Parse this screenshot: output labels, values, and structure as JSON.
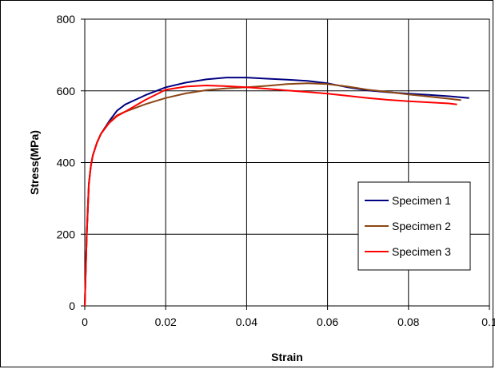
{
  "chart_data": {
    "type": "line",
    "title": "",
    "xlabel": "Strain",
    "ylabel": "Stress(MPa)",
    "xlim": [
      0,
      0.1
    ],
    "ylim": [
      0,
      800
    ],
    "x_ticks": [
      0,
      0.02,
      0.04,
      0.06,
      0.08,
      0.1
    ],
    "x_tick_labels": [
      "0",
      "0.02",
      "0.04",
      "0.06",
      "0.08",
      "0.1"
    ],
    "y_ticks": [
      0,
      200,
      400,
      600,
      800
    ],
    "y_tick_labels": [
      "0",
      "200",
      "400",
      "600",
      "800"
    ],
    "grid": true,
    "legend_position": "right-center",
    "series": [
      {
        "name": "Specimen 1",
        "color": "#000080",
        "points": [
          [
            0,
            0
          ],
          [
            0.0005,
            200
          ],
          [
            0.001,
            340
          ],
          [
            0.0015,
            390
          ],
          [
            0.002,
            420
          ],
          [
            0.003,
            455
          ],
          [
            0.004,
            480
          ],
          [
            0.006,
            515
          ],
          [
            0.008,
            545
          ],
          [
            0.01,
            562
          ],
          [
            0.015,
            588
          ],
          [
            0.02,
            610
          ],
          [
            0.025,
            623
          ],
          [
            0.03,
            632
          ],
          [
            0.035,
            637
          ],
          [
            0.04,
            637
          ],
          [
            0.045,
            634
          ],
          [
            0.05,
            631
          ],
          [
            0.055,
            628
          ],
          [
            0.06,
            621
          ],
          [
            0.065,
            610
          ],
          [
            0.07,
            601
          ],
          [
            0.075,
            596
          ],
          [
            0.08,
            592
          ],
          [
            0.085,
            589
          ],
          [
            0.09,
            585
          ],
          [
            0.095,
            580
          ]
        ]
      },
      {
        "name": "Specimen 2",
        "color": "#8B4513",
        "points": [
          [
            0,
            0
          ],
          [
            0.0005,
            200
          ],
          [
            0.001,
            340
          ],
          [
            0.0015,
            390
          ],
          [
            0.002,
            420
          ],
          [
            0.003,
            455
          ],
          [
            0.004,
            480
          ],
          [
            0.006,
            512
          ],
          [
            0.008,
            532
          ],
          [
            0.01,
            542
          ],
          [
            0.015,
            563
          ],
          [
            0.02,
            580
          ],
          [
            0.025,
            593
          ],
          [
            0.03,
            602
          ],
          [
            0.035,
            607
          ],
          [
            0.04,
            610
          ],
          [
            0.045,
            614
          ],
          [
            0.05,
            619
          ],
          [
            0.055,
            621
          ],
          [
            0.06,
            619
          ],
          [
            0.065,
            612
          ],
          [
            0.07,
            603
          ],
          [
            0.075,
            597
          ],
          [
            0.08,
            590
          ],
          [
            0.085,
            584
          ],
          [
            0.09,
            578
          ],
          [
            0.093,
            574
          ]
        ]
      },
      {
        "name": "Specimen 3",
        "color": "#FF0000",
        "points": [
          [
            0,
            0
          ],
          [
            0.0005,
            200
          ],
          [
            0.001,
            340
          ],
          [
            0.0015,
            390
          ],
          [
            0.002,
            420
          ],
          [
            0.003,
            455
          ],
          [
            0.004,
            480
          ],
          [
            0.006,
            510
          ],
          [
            0.008,
            530
          ],
          [
            0.01,
            542
          ],
          [
            0.015,
            575
          ],
          [
            0.02,
            603
          ],
          [
            0.025,
            612
          ],
          [
            0.03,
            615
          ],
          [
            0.035,
            613
          ],
          [
            0.04,
            610
          ],
          [
            0.045,
            606
          ],
          [
            0.05,
            601
          ],
          [
            0.055,
            597
          ],
          [
            0.06,
            592
          ],
          [
            0.065,
            586
          ],
          [
            0.07,
            580
          ],
          [
            0.075,
            575
          ],
          [
            0.08,
            571
          ],
          [
            0.085,
            568
          ],
          [
            0.09,
            565
          ],
          [
            0.092,
            562
          ]
        ]
      }
    ]
  }
}
